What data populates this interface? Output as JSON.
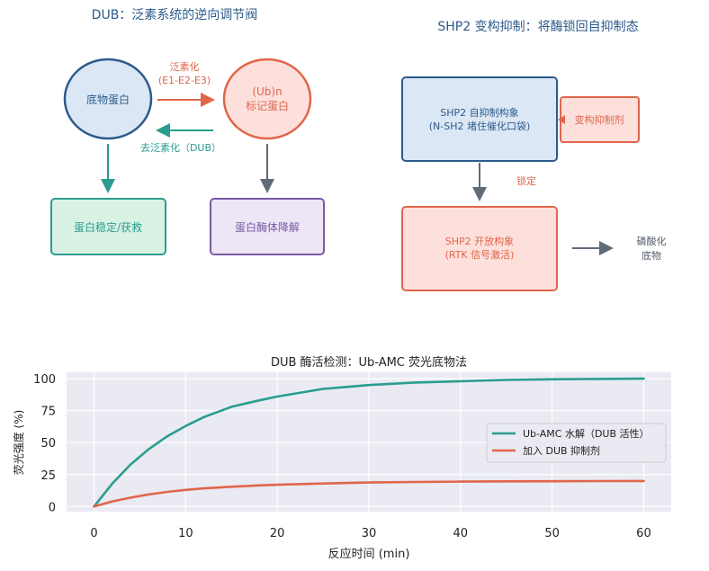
{
  "dub_panel": {
    "title": "DUB：泛素系统的逆向调节阀",
    "substrate": "底物蛋白",
    "ub_label_1": "(Ub)n",
    "ub_label_2": "标记蛋白",
    "ubiquitination_1": "泛素化",
    "ubiquitination_2": "(E1-E2-E3)",
    "deubiquitination": "去泛素化（DUB）",
    "stabilize": "蛋白稳定/获救",
    "degrade": "蛋白酶体降解",
    "colors": {
      "blue": "#2c5b8c",
      "orange": "#e0664a",
      "teal": "#2a9d8f",
      "purple": "#7a5aa8"
    }
  },
  "shp2_panel": {
    "title": "SHP2 变构抑制：将酶锁回自抑制态",
    "autoinhib_1": "SHP2 自抑制构象",
    "autoinhib_2": "(N-SH2 堵住催化口袋)",
    "inhibitor": "变构抑制剂",
    "lock": "锁定",
    "open_1": "SHP2 开放构象",
    "open_2": "(RTK 信号激活)",
    "product_1": "磷酸化",
    "product_2": "底物"
  },
  "chart_data": {
    "type": "line",
    "title": "DUB 酶活检测：Ub-AMC 荧光底物法",
    "xlabel": "反应时间 (min)",
    "ylabel": "荧光强度 (%)",
    "xlim": [
      -3,
      63
    ],
    "ylim": [
      -4,
      105
    ],
    "xticks": [
      0,
      10,
      20,
      30,
      40,
      50,
      60
    ],
    "yticks": [
      0,
      25,
      50,
      75,
      100
    ],
    "grid": true,
    "legend_position": "right",
    "x": [
      0,
      2,
      4,
      6,
      8,
      10,
      12,
      15,
      18,
      20,
      25,
      30,
      35,
      40,
      45,
      50,
      55,
      60
    ],
    "series": [
      {
        "name": "Ub-AMC 水解（DUB 活性）",
        "color": "#2a9d8f",
        "values": [
          0,
          18,
          33,
          45,
          55,
          63,
          70,
          78,
          83,
          86,
          92,
          95,
          97,
          98,
          99,
          99.5,
          99.8,
          100
        ]
      },
      {
        "name": "加入 DUB 抑制剂",
        "color": "#e0664a",
        "values": [
          0,
          4,
          7,
          9.5,
          11.5,
          13,
          14.2,
          15.5,
          16.5,
          17,
          18,
          18.8,
          19.2,
          19.5,
          19.7,
          19.8,
          19.9,
          20
        ]
      }
    ]
  }
}
